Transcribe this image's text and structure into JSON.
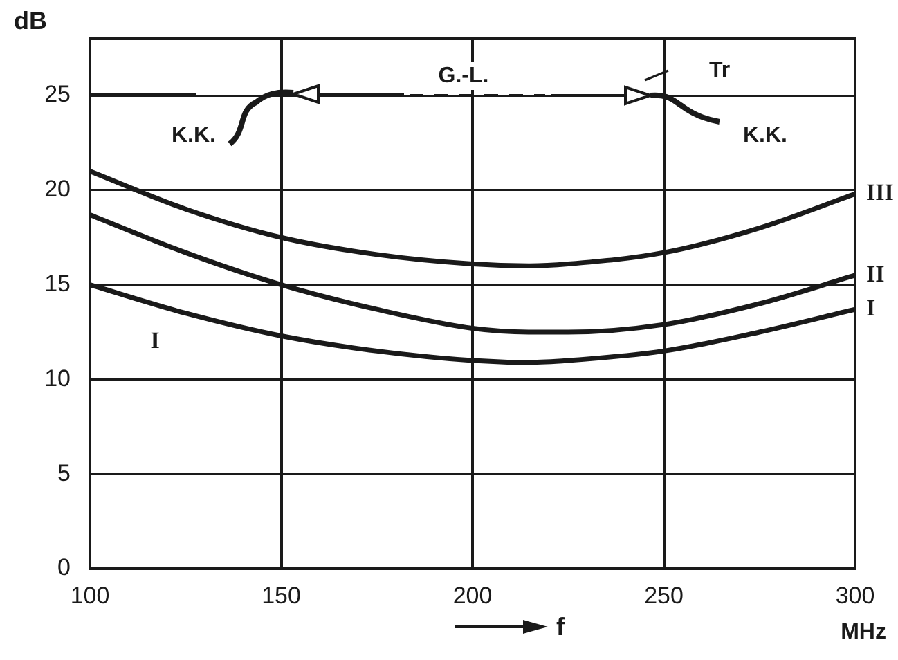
{
  "chart_data": {
    "type": "line",
    "xlabel": "f",
    "ylabel": "dB",
    "x": [
      100,
      125,
      150,
      175,
      200,
      215,
      225,
      250,
      275,
      300
    ],
    "series": [
      {
        "name": "III",
        "color": "#1a1a1a",
        "values": [
          21.0,
          19.0,
          17.5,
          16.6,
          16.1,
          16.0,
          16.1,
          16.7,
          18.0,
          19.8
        ]
      },
      {
        "name": "II",
        "color": "#1a1a1a",
        "values": [
          18.7,
          16.7,
          15.0,
          13.7,
          12.7,
          12.5,
          12.5,
          12.9,
          14.0,
          15.5
        ]
      },
      {
        "name": "I",
        "color": "#1a1a1a",
        "values": [
          15.0,
          13.5,
          12.3,
          11.5,
          11.0,
          10.9,
          11.0,
          11.5,
          12.5,
          13.7
        ]
      }
    ],
    "xlim": [
      100,
      300
    ],
    "xticks": [
      100,
      150,
      200,
      250,
      300
    ],
    "ylim": [
      0,
      28
    ],
    "yticks": [
      0,
      5,
      10,
      15,
      20,
      25
    ],
    "grid": true,
    "legend": false,
    "marker": "none",
    "line_style": "solid",
    "annotations": [
      "K.K.",
      "G.-L.",
      "Tr",
      "K.K.",
      "MHz",
      "I"
    ]
  }
}
